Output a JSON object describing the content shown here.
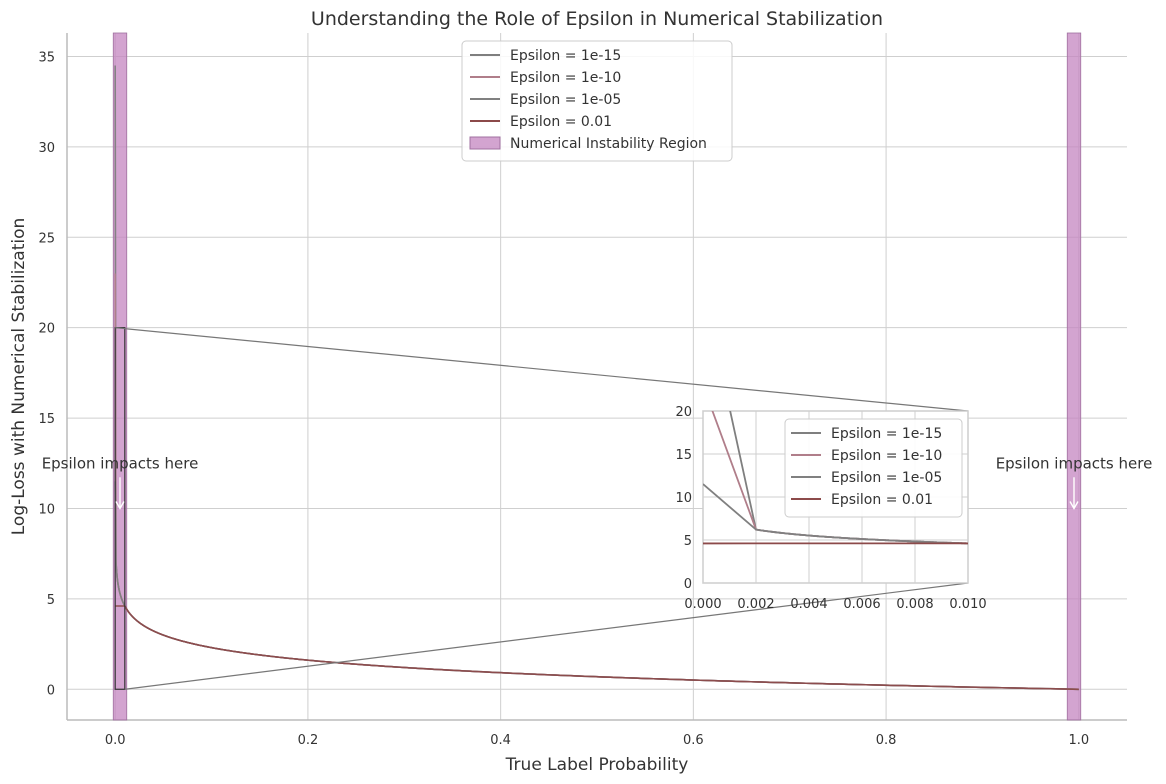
{
  "chart_data": {
    "type": "line",
    "title": "Understanding the Role of Epsilon in Numerical Stabilization",
    "xlabel": "True Label Probability",
    "ylabel": "Log-Loss with Numerical Stabilization",
    "xlim": [
      -0.05,
      1.05
    ],
    "ylim": [
      -1.7,
      36.3
    ],
    "xticks": [
      0.0,
      0.2,
      0.4,
      0.6,
      0.8,
      1.0
    ],
    "xtick_labels": [
      "0.0",
      "0.2",
      "0.4",
      "0.6",
      "0.8",
      "1.0"
    ],
    "yticks": [
      0,
      5,
      10,
      15,
      20,
      25,
      30,
      35
    ],
    "ytick_labels": [
      "0",
      "5",
      "10",
      "15",
      "20",
      "25",
      "30",
      "35"
    ],
    "grid": true,
    "legend_position": "top-center",
    "series": [
      {
        "name": "Epsilon = 1e-15",
        "color": "#7f7f7f",
        "epsilon": 1e-15,
        "peak_y": 34.5
      },
      {
        "name": "Epsilon = 1e-10",
        "color": "#b07e8a",
        "epsilon": 1e-10,
        "peak_y": 23.0
      },
      {
        "name": "Epsilon = 1e-05",
        "color": "#808080",
        "epsilon": 1e-05,
        "peak_y": 11.5
      },
      {
        "name": "Epsilon = 0.01",
        "color": "#8c4a4a",
        "epsilon": 0.01,
        "peak_y": 4.6
      }
    ],
    "instability_regions": [
      {
        "name": "Numerical Instability Region",
        "x_range": [
          -0.002,
          0.012
        ],
        "color": "#c486c0"
      },
      {
        "x_range": [
          0.988,
          1.002
        ],
        "color": "#c486c0"
      }
    ],
    "annotations": [
      {
        "text": "Epsilon impacts here",
        "x": 0.005,
        "y": 12.5,
        "arrow_to_y": 10
      },
      {
        "text": "Epsilon impacts here",
        "x": 0.995,
        "y": 12.5,
        "arrow_to_y": 10
      }
    ],
    "inset": {
      "xlim": [
        0.0,
        0.01
      ],
      "ylim": [
        0,
        20
      ],
      "xticks": [
        0.0,
        0.002,
        0.004,
        0.006,
        0.008,
        0.01
      ],
      "xtick_labels": [
        "0.000",
        "0.002",
        "0.004",
        "0.006",
        "0.008",
        "0.010"
      ],
      "yticks": [
        0,
        5,
        10,
        15,
        20
      ],
      "ytick_labels": [
        "0",
        "5",
        "10",
        "15",
        "20"
      ],
      "legend_position": "top-right",
      "zoom_box": {
        "x": [
          0.0,
          0.01
        ],
        "y": [
          0,
          20
        ]
      }
    }
  }
}
